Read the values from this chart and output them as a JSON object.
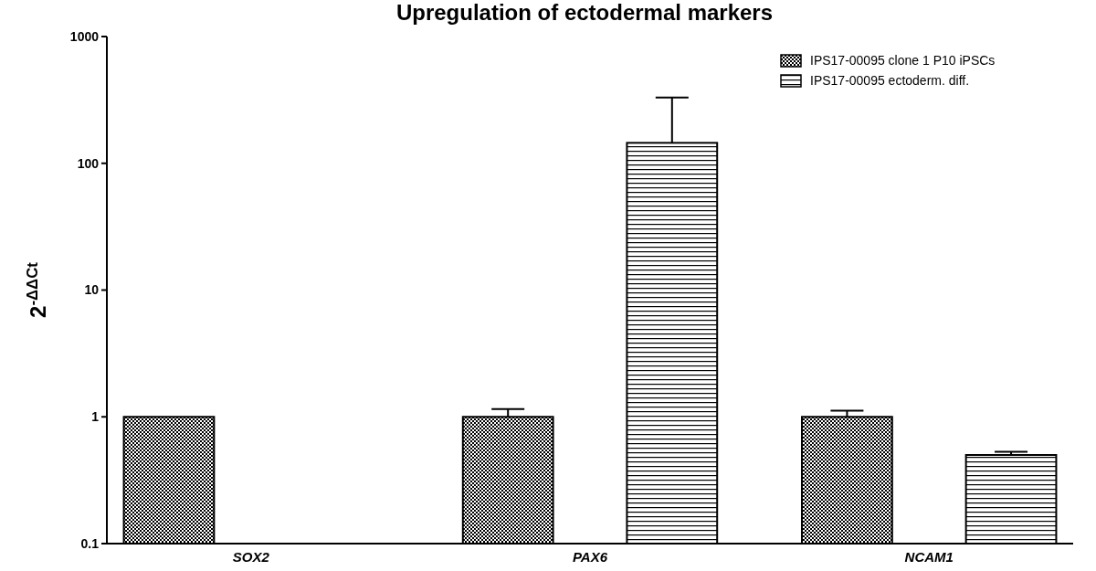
{
  "chart_data": {
    "type": "bar",
    "title": "Upregulation of ectodermal markers",
    "ylabel": "2$^{-ΔΔCt}$",
    "categories": [
      "SOX2",
      "PAX6",
      "NCAM1"
    ],
    "series": [
      {
        "name": "IPS17-00095 clone 1 P10 iPSCs",
        "color": "#000000",
        "values": [
          1,
          1,
          1
        ],
        "errors": [
          null,
          [
            1,
            1.15
          ],
          [
            1,
            1.12
          ]
        ]
      },
      {
        "name": "IPS17-00095 ectoderm. diff.",
        "color": "#000000",
        "values": [
          null,
          145,
          0.5
        ],
        "errors": [
          null,
          [
            145,
            330
          ],
          [
            0.5,
            0.53
          ]
        ]
      }
    ],
    "log": true,
    "ylim": [
      0.1,
      1000
    ],
    "yticks": [
      0.1,
      1,
      10,
      100,
      1000
    ],
    "grid": false,
    "legend": "top right"
  }
}
